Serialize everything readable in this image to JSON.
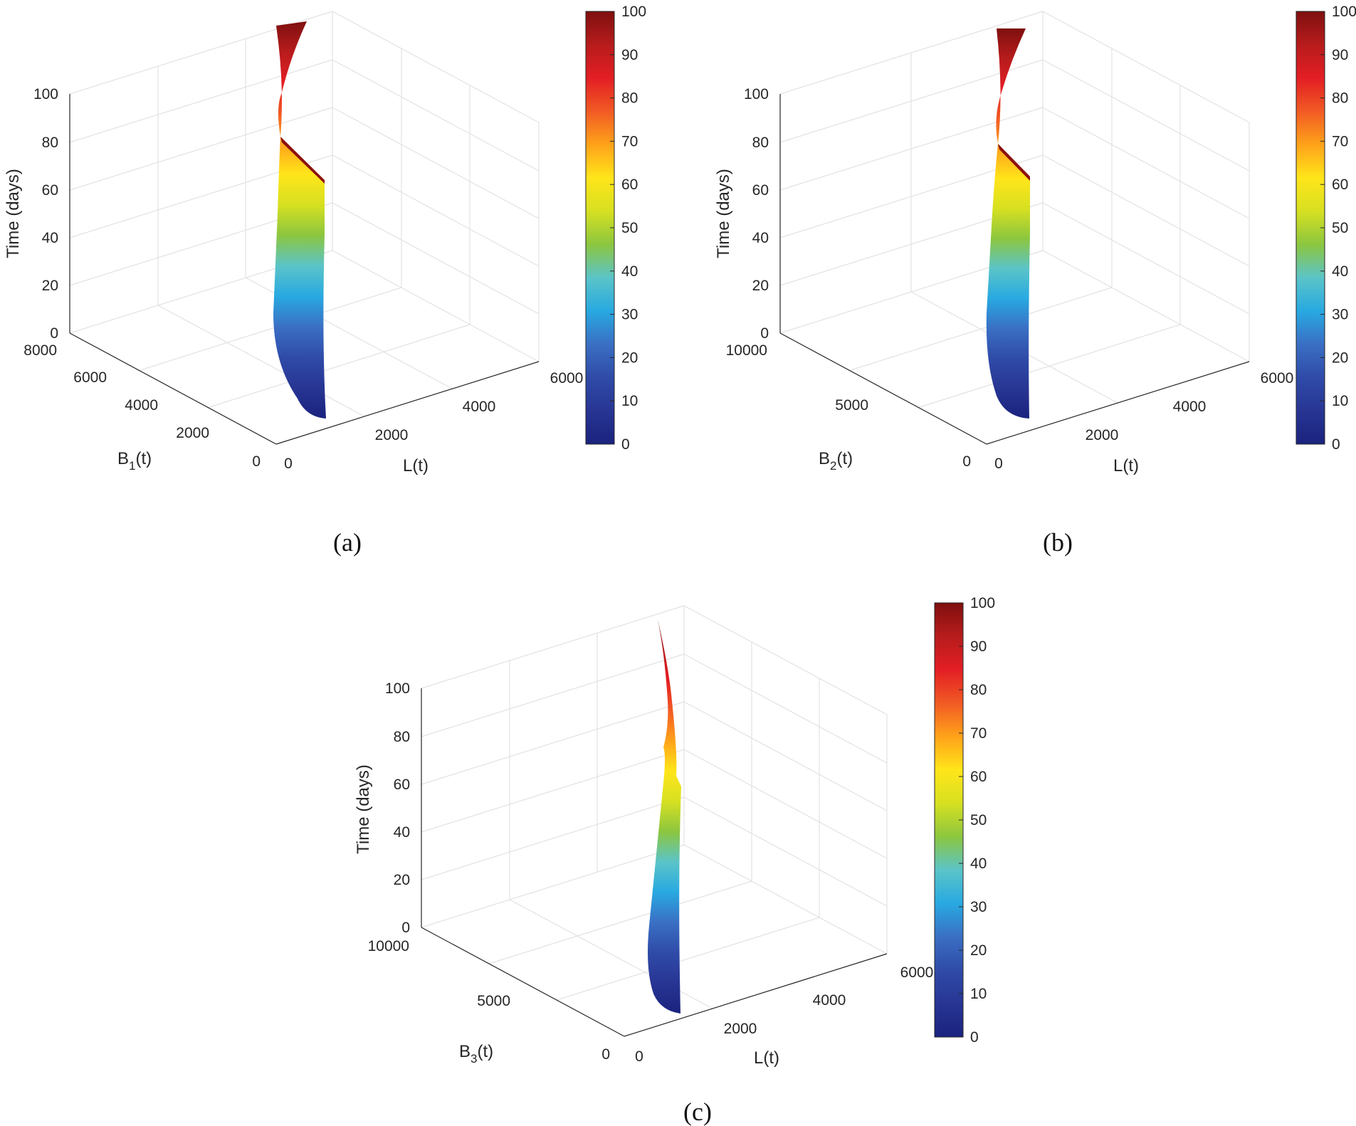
{
  "colorbar_colors": [
    "#1a237e",
    "#283593",
    "#2f4ba8",
    "#3a6fc4",
    "#28a9e1",
    "#5bc4c8",
    "#8cc63f",
    "#d7e021",
    "#ffe51a",
    "#ffa21a",
    "#f15a24",
    "#e31e24",
    "#b71c1c",
    "#7f0f0f"
  ],
  "chart_data": [
    {
      "panel": "a",
      "caption": "(a)",
      "type": "surface3d",
      "zlabel": "Time (days)",
      "xlabel": "L(t)",
      "ylabel_base": "B",
      "ylabel_sub": "1",
      "ylabel_tail": "(t)",
      "z_ticks": [
        "0",
        "20",
        "40",
        "60",
        "80",
        "100"
      ],
      "y_ticks": [
        "0",
        "2000",
        "4000",
        "6000",
        "8000"
      ],
      "x_ticks": [
        "0",
        "2000",
        "4000",
        "6000"
      ],
      "colorbar_ticks": [
        "0",
        "10",
        "20",
        "30",
        "40",
        "50",
        "60",
        "70",
        "80",
        "90",
        "100"
      ],
      "zlim": [
        0,
        100
      ],
      "ylim": [
        0,
        8000
      ],
      "xlim": [
        0,
        6000
      ],
      "clim": [
        0,
        100
      ],
      "surface_trace": [
        {
          "L": 1000,
          "B": 700,
          "t": 0
        },
        {
          "L": 1000,
          "B": 2000,
          "t": 10
        },
        {
          "L": 1000,
          "B": 3300,
          "t": 25
        },
        {
          "L": 1000,
          "B": 3900,
          "t": 45
        },
        {
          "L": 1000,
          "B": 3900,
          "t": 65
        },
        {
          "L": 1000,
          "B": 3900,
          "t": 80
        },
        {
          "L": 1000,
          "B": 3900,
          "t": 100
        }
      ]
    },
    {
      "panel": "b",
      "caption": "(b)",
      "type": "surface3d",
      "zlabel": "Time (days)",
      "xlabel": "L(t)",
      "ylabel_base": "B",
      "ylabel_sub": "2",
      "ylabel_tail": "(t)",
      "z_ticks": [
        "0",
        "20",
        "40",
        "60",
        "80",
        "100"
      ],
      "y_ticks": [
        "0",
        "5000",
        "10000"
      ],
      "x_ticks": [
        "0",
        "2000",
        "4000",
        "6000"
      ],
      "colorbar_ticks": [
        "0",
        "10",
        "20",
        "30",
        "40",
        "50",
        "60",
        "70",
        "80",
        "90",
        "100"
      ],
      "zlim": [
        0,
        100
      ],
      "ylim": [
        0,
        10000
      ],
      "xlim": [
        0,
        6000
      ],
      "clim": [
        0,
        100
      ],
      "surface_trace": [
        {
          "L": 800,
          "B": 900,
          "t": 0
        },
        {
          "L": 800,
          "B": 2500,
          "t": 10
        },
        {
          "L": 800,
          "B": 4100,
          "t": 25
        },
        {
          "L": 800,
          "B": 4300,
          "t": 45
        },
        {
          "L": 800,
          "B": 4300,
          "t": 65
        },
        {
          "L": 800,
          "B": 4300,
          "t": 80
        },
        {
          "L": 800,
          "B": 4300,
          "t": 100
        }
      ]
    },
    {
      "panel": "c",
      "caption": "(c)",
      "type": "surface3d",
      "zlabel": "Time (days)",
      "xlabel": "L(t)",
      "ylabel_base": "B",
      "ylabel_sub": "3",
      "ylabel_tail": "(t)",
      "z_ticks": [
        "0",
        "20",
        "40",
        "60",
        "80",
        "100"
      ],
      "y_ticks": [
        "0",
        "5000",
        "10000"
      ],
      "x_ticks": [
        "0",
        "2000",
        "4000",
        "6000"
      ],
      "colorbar_ticks": [
        "0",
        "10",
        "20",
        "30",
        "40",
        "50",
        "60",
        "70",
        "80",
        "90",
        "100"
      ],
      "zlim": [
        0,
        100
      ],
      "ylim": [
        0,
        10000
      ],
      "xlim": [
        0,
        6000
      ],
      "clim": [
        0,
        100
      ],
      "surface_trace": [
        {
          "L": 700,
          "B": 800,
          "t": 0
        },
        {
          "L": 700,
          "B": 2000,
          "t": 10
        },
        {
          "L": 700,
          "B": 2800,
          "t": 25
        },
        {
          "L": 700,
          "B": 3000,
          "t": 45
        },
        {
          "L": 700,
          "B": 3000,
          "t": 65
        },
        {
          "L": 700,
          "B": 3000,
          "t": 80
        },
        {
          "L": 700,
          "B": 3000,
          "t": 100
        }
      ]
    }
  ]
}
